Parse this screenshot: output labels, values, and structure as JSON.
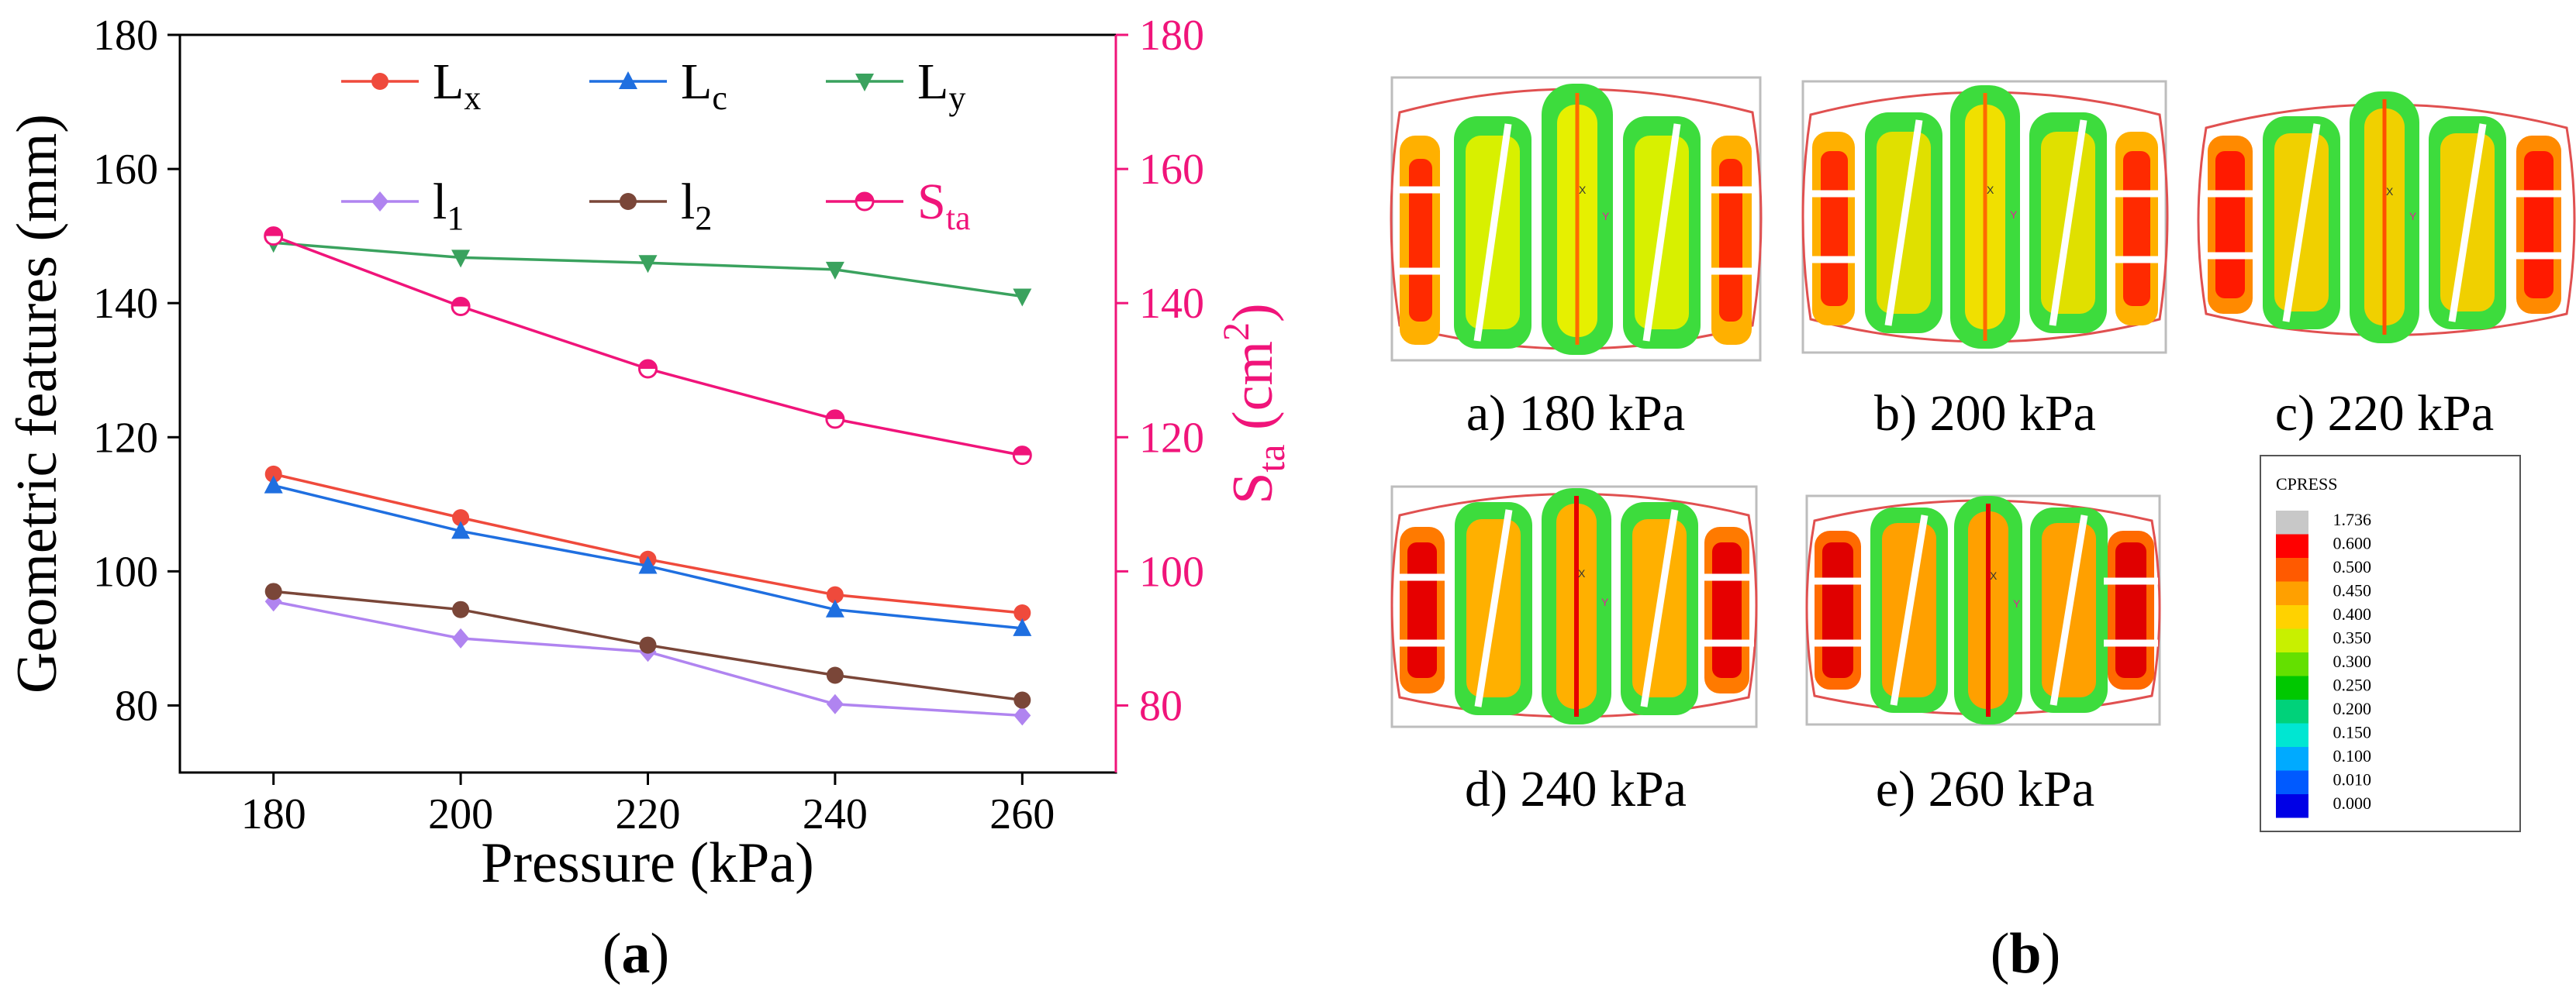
{
  "chart_data": [
    {
      "type": "line",
      "panel_label": "(a)",
      "panel_label_open": "(",
      "panel_label_letter": "a",
      "panel_label_close": ")",
      "x": [
        180,
        200,
        220,
        240,
        260
      ],
      "xlabel": "Pressure (kPa)",
      "xlim": [
        170,
        270
      ],
      "xticks": [
        180,
        200,
        220,
        240,
        260
      ],
      "ylabel": "Geometric features (mm)",
      "ylim": [
        70,
        180
      ],
      "yticks": [
        80,
        100,
        120,
        140,
        160,
        180
      ],
      "y2label": "S",
      "y2label_sub": "ta",
      "y2label_unit_open": " (cm",
      "y2label_unit_sup": "2",
      "y2label_unit_close": ")",
      "y2lim": [
        70,
        180
      ],
      "y2ticks": [
        80,
        100,
        120,
        140,
        160,
        180
      ],
      "legend_position": "top-right",
      "series": [
        {
          "name": "Lx",
          "main": "L",
          "sub": "x",
          "color": "#ef4a3c",
          "marker": "circle",
          "axis": "left",
          "values": [
            114.5,
            108,
            101.8,
            96.5,
            93.8
          ]
        },
        {
          "name": "Lc",
          "main": "L",
          "sub": "c",
          "color": "#1f6fe0",
          "marker": "triangle-up",
          "axis": "left",
          "values": [
            112.8,
            106,
            100.8,
            94.3,
            91.5
          ]
        },
        {
          "name": "Ly",
          "main": "L",
          "sub": "y",
          "color": "#3aa25e",
          "marker": "triangle-down",
          "axis": "left",
          "values": [
            149,
            146.8,
            146,
            145,
            141
          ]
        },
        {
          "name": "l1",
          "main": "l",
          "sub": "1",
          "color": "#b084f0",
          "marker": "diamond",
          "axis": "left",
          "values": [
            95.5,
            90,
            88,
            80.2,
            78.5
          ]
        },
        {
          "name": "l2",
          "main": "l",
          "sub": "2",
          "color": "#7a4638",
          "marker": "circle",
          "axis": "left",
          "values": [
            97,
            94.3,
            89,
            84.5,
            80.8
          ]
        },
        {
          "name": "Sta",
          "main": "S",
          "sub": "ta",
          "color": "#f0147a",
          "marker": "circle-half",
          "axis": "right",
          "values": [
            150,
            139.5,
            130.2,
            122.7,
            117.3
          ]
        }
      ]
    }
  ],
  "panel_b": {
    "label": "(b)",
    "label_open": "(",
    "label_letter": "b",
    "label_close": ")",
    "footprints": [
      {
        "caption": "a) 180 kPa"
      },
      {
        "caption": "b) 200 kPa"
      },
      {
        "caption": "c) 220 kPa"
      },
      {
        "caption": "d) 240 kPa"
      },
      {
        "caption": "e) 260 kPa"
      }
    ],
    "axis_labels": {
      "x": "X",
      "y": "Y"
    },
    "legend": {
      "title": "CPRESS",
      "levels": [
        {
          "label": "1.736",
          "color": "#c8c8c8"
        },
        {
          "label": "0.600",
          "color": "#ff0000"
        },
        {
          "label": "0.500",
          "color": "#ff5a00"
        },
        {
          "label": "0.450",
          "color": "#ffa000"
        },
        {
          "label": "0.400",
          "color": "#ffd200"
        },
        {
          "label": "0.350",
          "color": "#c8f000"
        },
        {
          "label": "0.300",
          "color": "#64e000"
        },
        {
          "label": "0.250",
          "color": "#00c800"
        },
        {
          "label": "0.200",
          "color": "#00d27a"
        },
        {
          "label": "0.150",
          "color": "#00e6d2"
        },
        {
          "label": "0.100",
          "color": "#00aaff"
        },
        {
          "label": "0.010",
          "color": "#005aff"
        },
        {
          "label": "0.000",
          "color": "#0000e6"
        }
      ]
    }
  }
}
